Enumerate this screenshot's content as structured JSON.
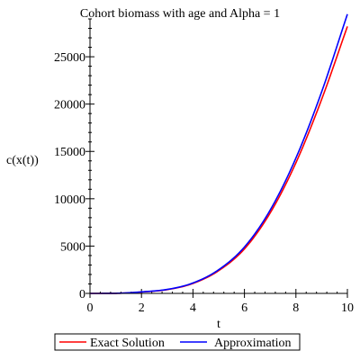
{
  "chart_data": {
    "type": "line",
    "title": "Cohort biomass with age and Alpha = 1",
    "xlabel": "t",
    "ylabel": "c(x(t))",
    "xlim": [
      0,
      10
    ],
    "ylim": [
      0,
      29000
    ],
    "x_ticks": [
      0,
      2,
      4,
      6,
      8,
      10
    ],
    "x_tick_labels": [
      "0",
      "2",
      "4",
      "6",
      "8",
      "10"
    ],
    "y_ticks": [
      0,
      5000,
      10000,
      15000,
      20000,
      25000
    ],
    "y_tick_labels": [
      "0",
      "5000",
      "10000",
      "15000",
      "20000",
      "25000"
    ],
    "grid": false,
    "legend_position": "bottom",
    "series": [
      {
        "name": "Exact Solution",
        "color": "#ff0000",
        "x": [
          0,
          1,
          2,
          3,
          4,
          5,
          6,
          7,
          8,
          9,
          10
        ],
        "y": [
          0,
          10,
          150,
          400,
          1050,
          2400,
          4700,
          8500,
          13800,
          20500,
          28200
        ]
      },
      {
        "name": "Approximation",
        "color": "#0000ff",
        "x": [
          0,
          1,
          2,
          3,
          4,
          5,
          6,
          7,
          8,
          9,
          10
        ],
        "y": [
          0,
          10,
          160,
          420,
          1100,
          2500,
          4900,
          8800,
          14300,
          21300,
          29500
        ]
      }
    ]
  }
}
